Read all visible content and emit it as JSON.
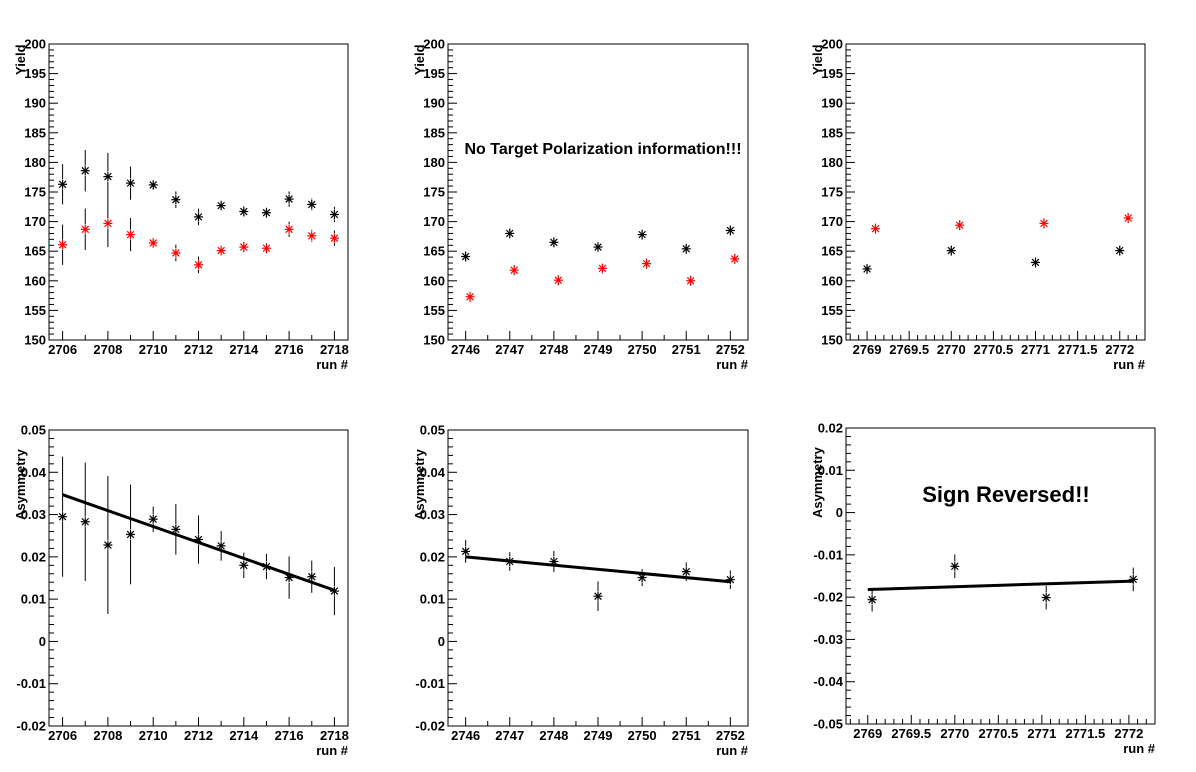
{
  "chart_data": [
    {
      "type": "scatter",
      "xlabel": "run #",
      "ylabel": "Yield",
      "xlim": [
        2705.4,
        2718.6
      ],
      "ylim": [
        150,
        200
      ],
      "x_ticks": [
        2706,
        2708,
        2710,
        2712,
        2714,
        2716,
        2718
      ],
      "y_ticks": [
        150,
        155,
        160,
        165,
        170,
        175,
        180,
        185,
        190,
        195,
        200
      ],
      "x_minor_step": 1,
      "annotation": "",
      "series": [
        {
          "color": "#000000",
          "x": [
            2706,
            2707,
            2708,
            2709,
            2710,
            2711,
            2712,
            2713,
            2714,
            2715,
            2716,
            2717,
            2718
          ],
          "y": [
            176.3,
            178.6,
            177.6,
            176.5,
            176.2,
            173.7,
            170.8,
            172.7,
            171.7,
            171.5,
            173.8,
            172.9,
            171.2
          ],
          "err": [
            3.4,
            3.5,
            4.0,
            2.8,
            0.8,
            1.4,
            1.4,
            0.8,
            0.7,
            0.7,
            1.3,
            1.0,
            1.3
          ]
        },
        {
          "color": "#ff0000",
          "x": [
            2706,
            2707,
            2708,
            2709,
            2710,
            2711,
            2712,
            2713,
            2714,
            2715,
            2716,
            2717,
            2718
          ],
          "y": [
            166.1,
            168.7,
            169.7,
            167.8,
            166.4,
            164.7,
            162.7,
            165.1,
            165.7,
            165.5,
            168.7,
            167.6,
            167.2
          ],
          "err": [
            3.4,
            3.5,
            4.0,
            2.8,
            0.8,
            1.4,
            1.4,
            0.8,
            0.7,
            0.7,
            1.3,
            1.0,
            1.3
          ]
        }
      ]
    },
    {
      "type": "scatter",
      "xlabel": "run #",
      "ylabel": "Yield",
      "xlim": [
        2745.6,
        2752.4
      ],
      "ylim": [
        150,
        200
      ],
      "x_ticks": [
        2746,
        2747,
        2748,
        2749,
        2750,
        2751,
        2752
      ],
      "y_ticks": [
        150,
        155,
        160,
        165,
        170,
        175,
        180,
        185,
        190,
        195,
        200
      ],
      "x_minor_step": 0.5,
      "annotation": "No Target Polarization information!!!",
      "series": [
        {
          "color": "#000000",
          "x": [
            2746,
            2747,
            2748,
            2749,
            2750,
            2751,
            2752
          ],
          "y": [
            164.1,
            168.0,
            166.5,
            165.7,
            167.8,
            165.4,
            168.5
          ],
          "err": [
            0.6,
            0.6,
            0.6,
            0.8,
            0.6,
            0.6,
            0.6
          ]
        },
        {
          "color": "#ff0000",
          "x": [
            2746.1,
            2747.1,
            2748.1,
            2749.1,
            2750.1,
            2751.1,
            2752.1
          ],
          "y": [
            157.3,
            161.8,
            160.1,
            162.1,
            162.9,
            160.0,
            163.7
          ],
          "err": [
            0.6,
            0.6,
            0.6,
            0.8,
            0.6,
            0.6,
            0.6
          ]
        }
      ]
    },
    {
      "type": "scatter",
      "xlabel": "run #",
      "ylabel": "Yield",
      "xlim": [
        2768.75,
        2772.3
      ],
      "ylim": [
        150,
        200
      ],
      "x_ticks": [
        2769,
        2769.5,
        2770,
        2770.5,
        2771,
        2771.5,
        2772
      ],
      "y_ticks": [
        150,
        155,
        160,
        165,
        170,
        175,
        180,
        185,
        190,
        195,
        200
      ],
      "x_minor_step": 0.1,
      "annotation": "",
      "series": [
        {
          "color": "#000000",
          "x": [
            2769.0,
            2770.0,
            2771.0,
            2772.0
          ],
          "y": [
            162.0,
            165.1,
            163.1,
            165.1
          ],
          "err": [
            0.6,
            0.6,
            0.6,
            0.6
          ]
        },
        {
          "color": "#ff0000",
          "x": [
            2769.1,
            2770.1,
            2771.1,
            2772.1
          ],
          "y": [
            168.8,
            169.4,
            169.7,
            170.6
          ],
          "err": [
            0.6,
            0.6,
            0.6,
            0.6
          ]
        }
      ]
    },
    {
      "type": "scatter",
      "xlabel": "run #",
      "ylabel": "Asymmetry",
      "xlim": [
        2705.4,
        2718.6
      ],
      "ylim": [
        -0.02,
        0.05
      ],
      "x_ticks": [
        2706,
        2708,
        2710,
        2712,
        2714,
        2716,
        2718
      ],
      "y_ticks": [
        -0.02,
        -0.01,
        0,
        0.01,
        0.02,
        0.03,
        0.04,
        0.05
      ],
      "y_tick_labels": [
        "-0.02",
        "-0.01",
        "0",
        "0.01",
        "0.02",
        "0.03",
        "0.04",
        "0.05"
      ],
      "x_minor_step": 1,
      "annotation": "",
      "series": [
        {
          "color": "#000000",
          "x": [
            2706,
            2707,
            2708,
            2709,
            2710,
            2711,
            2712,
            2713,
            2714,
            2715,
            2716,
            2717,
            2718
          ],
          "y": [
            0.0295,
            0.0283,
            0.0228,
            0.0253,
            0.0289,
            0.0265,
            0.0241,
            0.0226,
            0.018,
            0.0177,
            0.0151,
            0.0153,
            0.0119
          ],
          "err": [
            0.0142,
            0.014,
            0.0163,
            0.0118,
            0.003,
            0.006,
            0.0057,
            0.0035,
            0.003,
            0.003,
            0.005,
            0.0038,
            0.0057
          ]
        }
      ],
      "fit": {
        "x": [
          2706,
          2718
        ],
        "y": [
          0.0347,
          0.0121
        ]
      }
    },
    {
      "type": "scatter",
      "xlabel": "run #",
      "ylabel": "Asymmetry",
      "xlim": [
        2745.6,
        2752.4
      ],
      "ylim": [
        -0.02,
        0.05
      ],
      "x_ticks": [
        2746,
        2747,
        2748,
        2749,
        2750,
        2751,
        2752
      ],
      "y_ticks": [
        -0.02,
        -0.01,
        0,
        0.01,
        0.02,
        0.03,
        0.04,
        0.05
      ],
      "y_tick_labels": [
        "-0.02",
        "-0.01",
        "0",
        "0.01",
        "0.02",
        "0.03",
        "0.04",
        "0.05"
      ],
      "x_minor_step": 0.5,
      "annotation": "",
      "series": [
        {
          "color": "#000000",
          "x": [
            2746,
            2747,
            2748,
            2749,
            2750,
            2751,
            2752
          ],
          "y": [
            0.0213,
            0.0189,
            0.0189,
            0.0107,
            0.0151,
            0.0165,
            0.0146
          ],
          "err": [
            0.0027,
            0.0022,
            0.0025,
            0.0035,
            0.002,
            0.0022,
            0.0022
          ]
        }
      ],
      "fit": {
        "x": [
          2746,
          2752
        ],
        "y": [
          0.02,
          0.0141
        ]
      }
    },
    {
      "type": "scatter",
      "xlabel": "run #",
      "ylabel": "Asymmetry",
      "xlim": [
        2768.75,
        2772.3
      ],
      "ylim": [
        -0.05,
        0.02
      ],
      "x_ticks": [
        2769,
        2769.5,
        2770,
        2770.5,
        2771,
        2771.5,
        2772
      ],
      "y_ticks": [
        -0.05,
        -0.04,
        -0.03,
        -0.02,
        -0.01,
        0,
        0.01,
        0.02
      ],
      "y_tick_labels": [
        "-0.05",
        "-0.04",
        "-0.03",
        "-0.02",
        "-0.01",
        "0",
        "0.01",
        "0.02"
      ],
      "x_minor_step": 0.1,
      "annotation": "Sign Reversed!!",
      "series": [
        {
          "color": "#000000",
          "x": [
            2769.05,
            2770.0,
            2771.05,
            2772.05
          ],
          "y": [
            -0.0206,
            -0.0127,
            -0.0201,
            -0.0158
          ],
          "err": [
            0.0028,
            0.0028,
            0.0028,
            0.0028
          ]
        }
      ],
      "fit": {
        "x": [
          2769.0,
          2772.05
        ],
        "y": [
          -0.0182,
          -0.0162
        ]
      }
    }
  ]
}
